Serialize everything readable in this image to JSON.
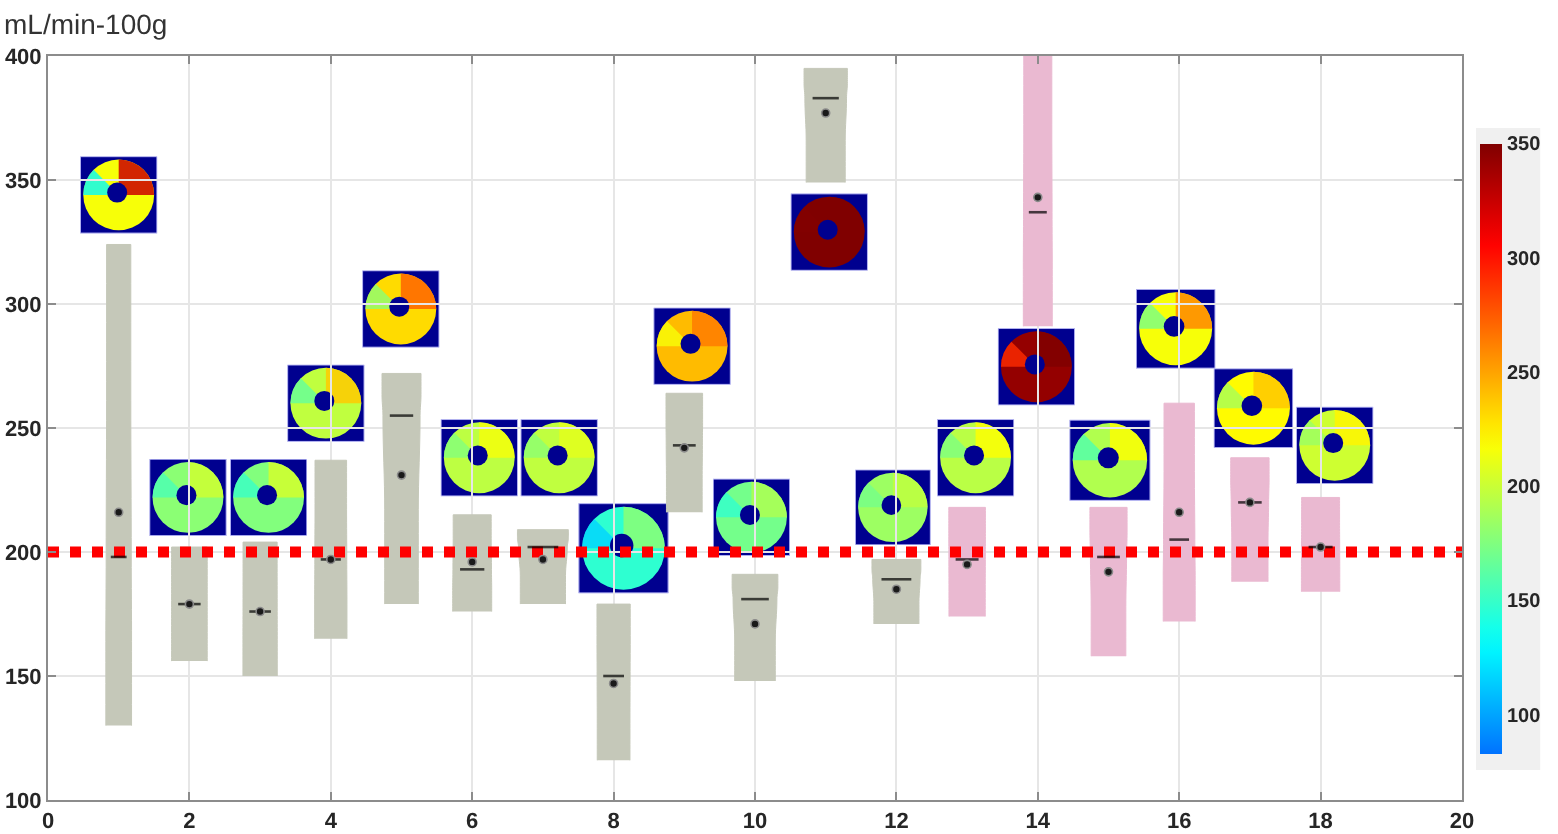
{
  "chart_data": {
    "type": "box",
    "ylabel": "mL/min-100g",
    "xlim": [
      0,
      20
    ],
    "xticks": [
      0,
      2,
      4,
      6,
      8,
      10,
      12,
      14,
      16,
      18,
      20
    ],
    "ylim": [
      100,
      400
    ],
    "yticks": [
      100,
      150,
      200,
      250,
      300,
      350,
      400
    ],
    "grid": true,
    "clim": [
      83,
      350
    ],
    "cticks": [
      100,
      150,
      200,
      250,
      300,
      350
    ],
    "ref_lines": [
      {
        "axis": "y",
        "value": 200,
        "color": "#ff0000",
        "line_style": "dotted"
      }
    ],
    "series": [
      {
        "color": "#c5c8b9",
        "x": [
          1,
          2,
          3,
          4,
          5,
          6,
          7,
          8,
          9,
          10,
          11,
          12
        ],
        "boxes": [
          {
            "low": 130,
            "q1": 130,
            "median": 198,
            "q3": 324,
            "high": 324,
            "mean": 216
          },
          {
            "low": 156,
            "q1": 156,
            "median": 179,
            "q3": 202,
            "high": 202,
            "mean": 179
          },
          {
            "low": 150,
            "q1": 150,
            "median": 176,
            "q3": 204,
            "high": 204,
            "mean": 176
          },
          {
            "low": 165,
            "q1": 165,
            "median": 197,
            "q3": 237,
            "high": 237,
            "mean": 197
          },
          {
            "low": 179,
            "q1": 179,
            "median": 255,
            "q3": 272,
            "high": 272,
            "mean": 231
          },
          {
            "low": 176,
            "q1": 176,
            "median": 193,
            "q3": 215,
            "high": 215,
            "mean": 196
          },
          {
            "low": 179,
            "q1": 179,
            "median": 202,
            "q3": 209,
            "high": 209,
            "mean": 197
          },
          {
            "low": 116,
            "q1": 116,
            "median": 150,
            "q3": 179,
            "high": 179,
            "mean": 147
          },
          {
            "low": 216,
            "q1": 216,
            "median": 243,
            "q3": 264,
            "high": 264,
            "mean": 242
          },
          {
            "low": 148,
            "q1": 148,
            "median": 181,
            "q3": 191,
            "high": 191,
            "mean": 171
          },
          {
            "low": 349,
            "q1": 349,
            "median": 383,
            "q3": 395,
            "high": 395,
            "mean": 377
          },
          {
            "low": 171,
            "q1": 171,
            "median": 189,
            "q3": 197,
            "high": 197,
            "mean": 185
          }
        ]
      },
      {
        "color": "#eab9d1",
        "x": [
          13,
          14,
          15,
          16,
          17,
          18
        ],
        "boxes": [
          {
            "low": 174,
            "q1": 174,
            "median": 197,
            "q3": 218,
            "high": 218,
            "mean": 195
          },
          {
            "low": 291,
            "q1": 291,
            "median": 337,
            "q3": 400,
            "high": 400,
            "mean": 343
          },
          {
            "low": 158,
            "q1": 158,
            "median": 198,
            "q3": 218,
            "high": 218,
            "mean": 192
          },
          {
            "low": 172,
            "q1": 172,
            "median": 205,
            "q3": 260,
            "high": 260,
            "mean": 216
          },
          {
            "low": 188,
            "q1": 188,
            "median": 220,
            "q3": 238,
            "high": 238,
            "mean": 220
          },
          {
            "low": 184,
            "q1": 184,
            "median": 202,
            "q3": 222,
            "high": 222,
            "mean": 202
          }
        ]
      }
    ]
  }
}
